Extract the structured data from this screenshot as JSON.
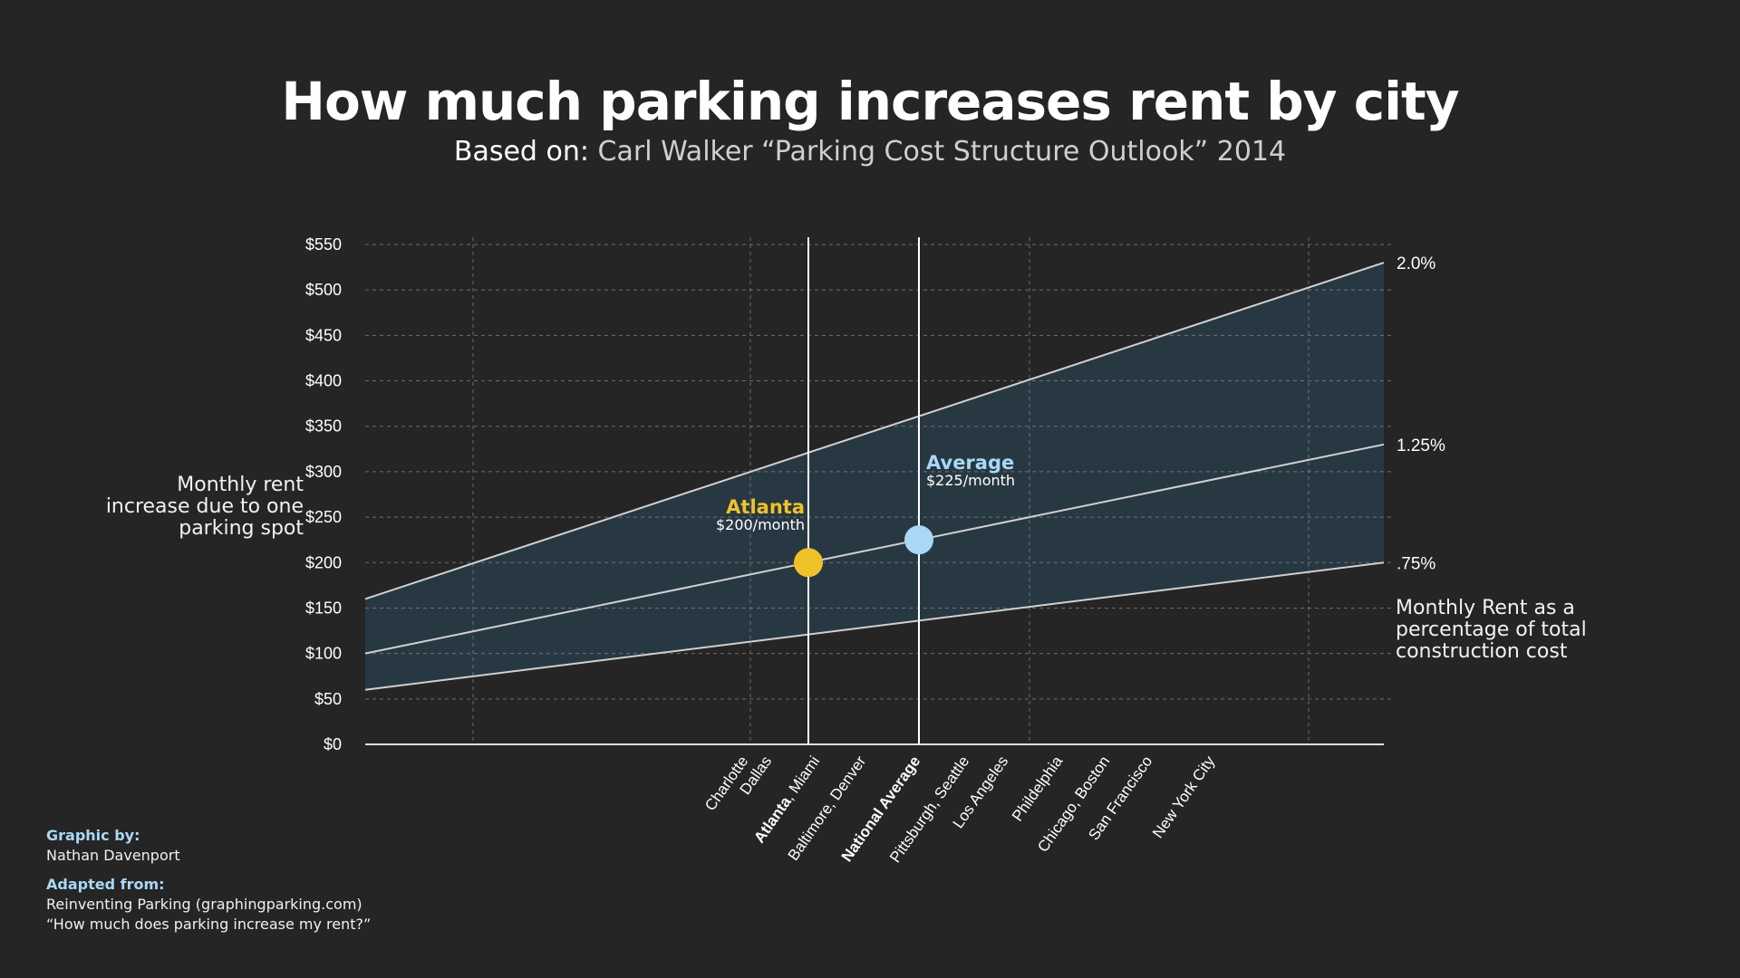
{
  "header": {
    "title": "How much parking increases rent by city",
    "subtitle_lead": "Based on:",
    "subtitle_source": "Carl Walker “Parking Cost Structure Outlook” 2014"
  },
  "axes": {
    "y_label": "Monthly rent increase due to one parking spot",
    "right_label": "Monthly Rent as a percentage of total construction cost"
  },
  "colors": {
    "background": "#252525",
    "band_fill": "#283843",
    "line": "#d0d0d0",
    "atlanta": "#f0c229",
    "average": "#a9d8f6"
  },
  "chart_data": {
    "type": "line",
    "ylim": [
      0,
      550
    ],
    "y_ticks": [
      0,
      50,
      100,
      150,
      200,
      250,
      300,
      350,
      400,
      450,
      500,
      550
    ],
    "y_tick_labels": [
      "$0",
      "$50",
      "$100",
      "$150",
      "$200",
      "$250",
      "$300",
      "$350",
      "$400",
      "$450",
      "$500",
      "$550"
    ],
    "x_categories": [
      {
        "label": "Charlotte",
        "bold_part": ""
      },
      {
        "label": "Dallas",
        "bold_part": ""
      },
      {
        "label": ", Miami",
        "bold_part": "Atlanta"
      },
      {
        "label": "Baltimore, Denver",
        "bold_part": ""
      },
      {
        "label": "",
        "bold_part": "National Average"
      },
      {
        "label": "Pittsburgh, Seattle",
        "bold_part": ""
      },
      {
        "label": "Los Angeles",
        "bold_part": ""
      },
      {
        "label": "Phildelphia",
        "bold_part": ""
      },
      {
        "label": "Chicago, Boston",
        "bold_part": ""
      },
      {
        "label": "San Francisco",
        "bold_part": ""
      },
      {
        "label": "New York City",
        "bold_part": ""
      }
    ],
    "series": [
      {
        "name": "2.0%",
        "start": 160,
        "end": 530
      },
      {
        "name": "1.25%",
        "start": 100,
        "end": 330
      },
      {
        "name": ".75%",
        "start": 60,
        "end": 200
      }
    ],
    "highlights": [
      {
        "label": "Atlanta",
        "value_label": "$200/month",
        "value": 200,
        "category": "Atlanta",
        "color": "#f0c229"
      },
      {
        "label": "Average",
        "value_label": "$225/month",
        "value": 225,
        "category": "National Average",
        "color": "#a9d8f6"
      }
    ],
    "grid": true
  },
  "credits": {
    "graphic_by_heading": "Graphic by:",
    "graphic_by": "Nathan Davenport",
    "adapted_from_heading": "Adapted from:",
    "adapted_line1": "Reinventing Parking (graphingparking.com)",
    "adapted_line2": "“How much does parking increase my rent?”"
  }
}
